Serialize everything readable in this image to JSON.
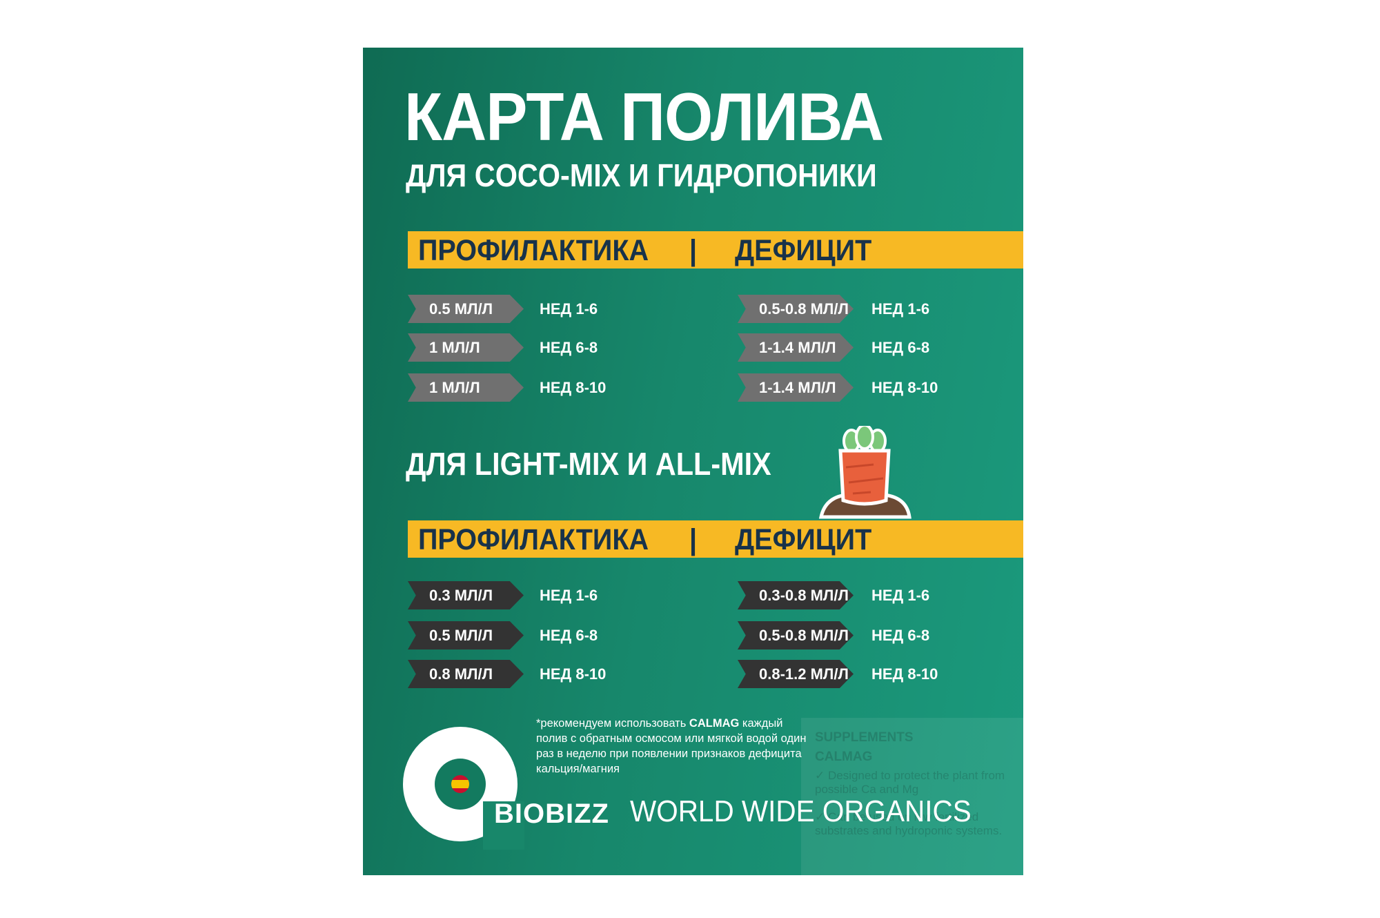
{
  "title": "КАРТА ПОЛИВА",
  "subtitle": "ДЛЯ COCO-MIX И ГИДРОПОНИКИ",
  "section2_title": "ДЛЯ LIGHT-MIX И ALL-MIX",
  "header": {
    "left": "ПРОФИЛАКТИКА",
    "sep": "|",
    "right": "ДЕФИЦИТ"
  },
  "colors": {
    "accent": "#f7b924",
    "background": "#17876b",
    "arrow_grey": "#707070",
    "arrow_dark": "#333333",
    "header_text": "#18324a"
  },
  "coco": {
    "prevention": [
      {
        "dose": "0.5 МЛ/Л",
        "weeks": "НЕД 1-6"
      },
      {
        "dose": "1 МЛ/Л",
        "weeks": "НЕД 6-8"
      },
      {
        "dose": "1 МЛ/Л",
        "weeks": "НЕД 8-10"
      }
    ],
    "deficit": [
      {
        "dose": "0.5-0.8 МЛ/Л",
        "weeks": "НЕД 1-6"
      },
      {
        "dose": "1-1.4 МЛ/Л",
        "weeks": "НЕД 6-8"
      },
      {
        "dose": "1-1.4 МЛ/Л",
        "weeks": "НЕД 8-10"
      }
    ]
  },
  "light": {
    "prevention": [
      {
        "dose": "0.3 МЛ/Л",
        "weeks": "НЕД 1-6"
      },
      {
        "dose": "0.5 МЛ/Л",
        "weeks": "НЕД 6-8"
      },
      {
        "dose": "0.8 МЛ/Л",
        "weeks": "НЕД 8-10"
      }
    ],
    "deficit": [
      {
        "dose": "0.3-0.8 МЛ/Л",
        "weeks": "НЕД 1-6"
      },
      {
        "dose": "0.5-0.8 МЛ/Л",
        "weeks": "НЕД 6-8"
      },
      {
        "dose": "0.8-1.2 МЛ/Л",
        "weeks": "НЕД 8-10"
      }
    ]
  },
  "note": {
    "pre": "*рекомендуем использовать ",
    "bold": "CALMAG",
    "post": " каждый полив с обратным осмосом или мягкой водой один раз в неделю при появлении признаков дефицита кальция/магния"
  },
  "brand": {
    "logo": "BIOBIZZ",
    "slogan": "WORLD WIDE ORGANICS"
  },
  "supplements": {
    "heading": "SUPPLEMENTS",
    "product": "CALMAG",
    "items": [
      "✓ Designed to protect the plant from possible Ca and Mg",
      "✓ Can be used on low fertilized substrates and hydroponic systems."
    ]
  },
  "icons": [
    "carrot-icon",
    "spain-flag-icon"
  ]
}
